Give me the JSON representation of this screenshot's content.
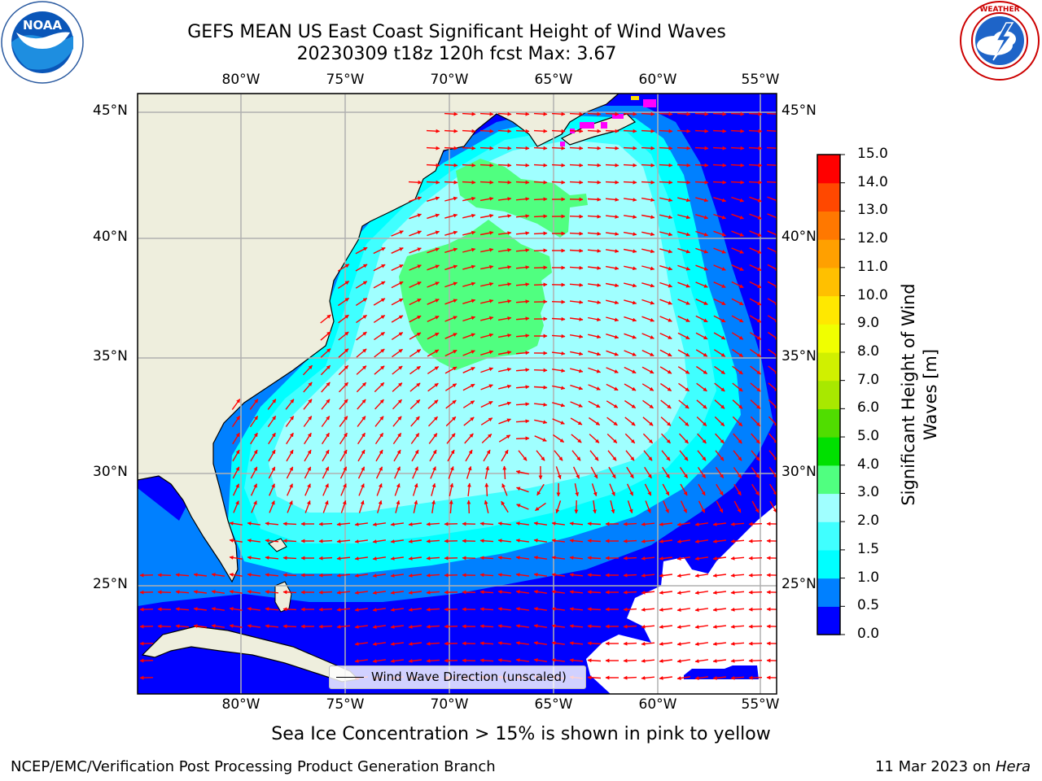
{
  "title": {
    "line1": "GEFS MEAN US East Coast Significant Height of Wind Waves",
    "line2": "20230309 t18z 120h fcst   Max: 3.67"
  },
  "logos": {
    "left": "NOAA",
    "left_ring_text": "NATIONAL OCEANIC AND ATMOSPHERIC ADMINISTRATION · U.S. DEPARTMENT OF COMMERCE",
    "right_ring_text": "NATIONAL WEATHER SERVICE"
  },
  "axes": {
    "lon_labels": [
      "80°W",
      "75°W",
      "70°W",
      "65°W",
      "60°W",
      "55°W"
    ],
    "lat_labels": [
      "45°N",
      "40°N",
      "35°N",
      "30°N",
      "25°N"
    ]
  },
  "colorbar": {
    "label": "Significant Height of Wind Waves [m]",
    "ticks": [
      "0.0",
      "0.5",
      "1.0",
      "1.5",
      "2.0",
      "3.0",
      "4.0",
      "5.0",
      "6.0",
      "7.0",
      "8.0",
      "9.0",
      "10.0",
      "11.0",
      "12.0",
      "13.0",
      "14.0",
      "15.0"
    ],
    "colors": [
      "#0000ff",
      "#0080ff",
      "#00ffff",
      "#40ffff",
      "#a0ffff",
      "#50ff80",
      "#00e000",
      "#50dd00",
      "#a8e800",
      "#d0f000",
      "#f0ff00",
      "#ffe800",
      "#ffc000",
      "#ffa000",
      "#ff7800",
      "#ff4800",
      "#ff0000"
    ]
  },
  "legend": {
    "label": "Wind Wave Direction (unscaled)"
  },
  "colors": {
    "land": "#eeeedd",
    "arrows": "#ff0000",
    "sea_ice": "#ff00ff",
    "grid": "#b0b0b0"
  },
  "footer": {
    "ice_note": "Sea Ice Concentration > 15% is shown in pink to yellow",
    "org": "NCEP/EMC/Verification Post Processing Product Generation Branch",
    "date": "11 Mar 2023 on ",
    "machine": "Hera"
  }
}
